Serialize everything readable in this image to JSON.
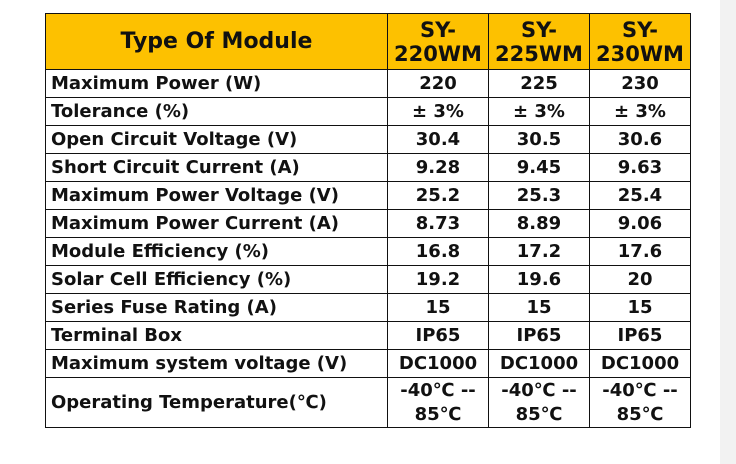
{
  "table": {
    "header": [
      "Type Of Module",
      "SY-220WM",
      "SY-225WM",
      "SY-230WM"
    ],
    "rows": [
      [
        "Maximum Power (W)",
        "220",
        "225",
        "230"
      ],
      [
        "Tolerance (%)",
        "± 3%",
        "± 3%",
        "± 3%"
      ],
      [
        "Open Circuit Voltage (V)",
        "30.4",
        "30.5",
        "30.6"
      ],
      [
        "Short Circuit Current (A)",
        "9.28",
        "9.45",
        "9.63"
      ],
      [
        "Maximum Power Voltage (V)",
        "25.2",
        "25.3",
        "25.4"
      ],
      [
        "Maximum Power Current (A)",
        "8.73",
        "8.89",
        "9.06"
      ],
      [
        "Module Efficiency (%)",
        "16.8",
        "17.2",
        "17.6"
      ],
      [
        "Solar Cell Efficiency (%)",
        "19.2",
        "19.6",
        "20"
      ],
      [
        "Series Fuse Rating (A)",
        "15",
        "15",
        "15"
      ],
      [
        "Terminal Box",
        "IP65",
        "IP65",
        "IP65"
      ],
      [
        "Maximum system voltage (V)",
        "DC1000",
        "DC1000",
        "DC1000"
      ],
      [
        "Operating Temperature(℃)",
        "-40℃ -- 85℃",
        "-40℃ -- 85℃",
        "-40℃ -- 85℃"
      ]
    ]
  }
}
